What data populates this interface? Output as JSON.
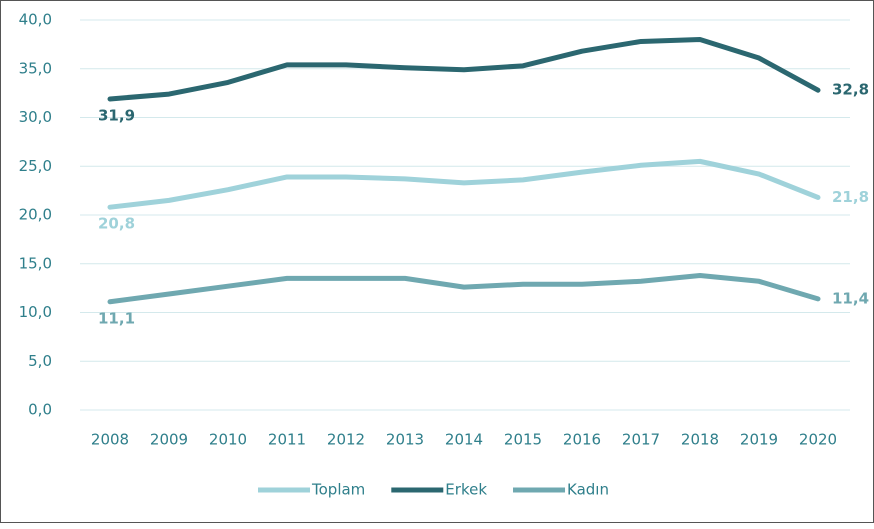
{
  "chart_data": {
    "type": "line",
    "x": [
      2008,
      2009,
      2010,
      2011,
      2012,
      2013,
      2014,
      2015,
      2016,
      2017,
      2018,
      2019,
      2020
    ],
    "ylim": [
      0,
      40
    ],
    "yticks": [
      {
        "value": 0,
        "label": "0,0"
      },
      {
        "value": 5,
        "label": "5,0"
      },
      {
        "value": 10,
        "label": "10,0"
      },
      {
        "value": 15,
        "label": "15,0"
      },
      {
        "value": 20,
        "label": "20,0"
      },
      {
        "value": 25,
        "label": "25,0"
      },
      {
        "value": 30,
        "label": "30,0"
      },
      {
        "value": 35,
        "label": "35,0"
      },
      {
        "value": 40,
        "label": "40,0"
      }
    ],
    "grid": true,
    "legend": "bottom",
    "series": [
      {
        "name": "Toplam",
        "color": "#9fd2da",
        "values": [
          20.8,
          21.5,
          22.6,
          23.9,
          23.9,
          23.7,
          23.3,
          23.6,
          24.4,
          25.1,
          25.5,
          24.2,
          21.8
        ],
        "value_labels": [
          "20,8",
          null,
          null,
          null,
          null,
          null,
          null,
          null,
          null,
          null,
          null,
          null,
          "21,8"
        ]
      },
      {
        "name": "Erkek",
        "color": "#2b6770",
        "values": [
          31.9,
          32.4,
          33.6,
          35.4,
          35.4,
          35.1,
          34.9,
          35.3,
          36.8,
          37.8,
          38.0,
          36.1,
          32.8
        ],
        "value_labels": [
          "31,9",
          null,
          null,
          null,
          null,
          null,
          null,
          null,
          null,
          null,
          null,
          null,
          "32,8"
        ]
      },
      {
        "name": "Kadın",
        "color": "#6fa8b0",
        "values": [
          11.1,
          11.9,
          12.7,
          13.5,
          13.5,
          13.5,
          12.6,
          12.9,
          12.9,
          13.2,
          13.8,
          13.2,
          11.4
        ],
        "value_labels": [
          "11,1",
          null,
          null,
          null,
          null,
          null,
          null,
          null,
          null,
          null,
          null,
          null,
          "11,4"
        ]
      }
    ]
  }
}
